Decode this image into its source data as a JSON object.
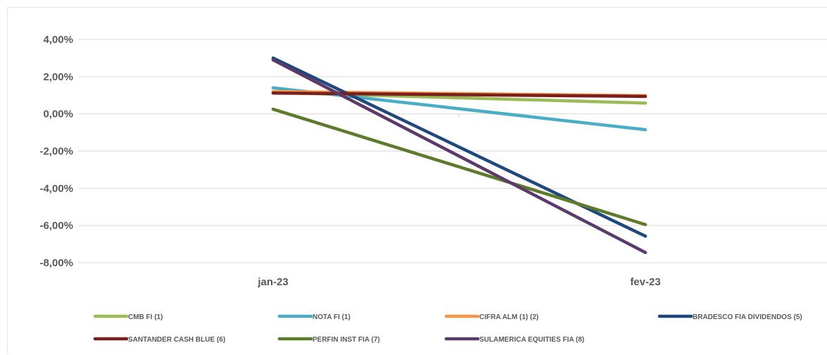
{
  "chart_data": {
    "type": "line",
    "title": "",
    "xlabel": "",
    "ylabel": "",
    "categories": [
      "jan-23",
      "fev-23"
    ],
    "ylim": [
      -0.08,
      0.04
    ],
    "yticks": [
      "4,00%",
      "2,00%",
      "0,00%",
      "-2,00%",
      "-4,00%",
      "-6,00%",
      "-8,00%"
    ],
    "ytick_values": [
      0.04,
      0.02,
      0.0,
      -0.02,
      -0.04,
      -0.06,
      -0.08
    ],
    "grid": true,
    "legend_position": "bottom",
    "series": [
      {
        "name": "CMB FI (1)",
        "color": "#9BBB59",
        "values": [
          0.0115,
          0.0058
        ]
      },
      {
        "name": "NOTA FI (1)",
        "color": "#4BACC6",
        "values": [
          0.014,
          -0.0085
        ]
      },
      {
        "name": "CIFRA ALM (1) (2)",
        "color": "#F79646",
        "values": [
          0.012,
          0.0098
        ]
      },
      {
        "name": "BRADESCO FIA DIVIDENDOS (5)",
        "color": "#1F497D",
        "values": [
          0.03,
          -0.0657
        ]
      },
      {
        "name": "SANTANDER CASH BLUE (6)",
        "color": "#7B1E1E",
        "values": [
          0.0112,
          0.0094
        ]
      },
      {
        "name": "PERFIN INST FIA (7)",
        "color": "#5E7A2C",
        "values": [
          0.0025,
          -0.0595
        ]
      },
      {
        "name": "SULAMERICA EQUITIES FIA (8)",
        "color": "#5B3A6B",
        "values": [
          0.029,
          -0.0745
        ]
      }
    ]
  }
}
